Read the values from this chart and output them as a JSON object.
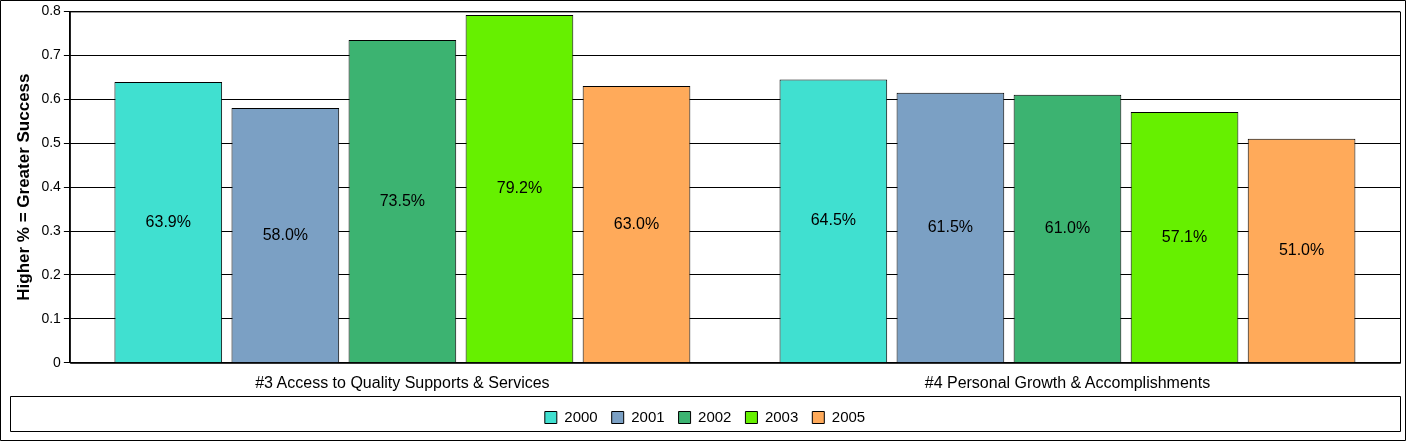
{
  "chart_data": {
    "type": "bar",
    "ylabel": "Higher % = Greater Success",
    "categories": [
      "#3 Access to Quality Supports & Services",
      "#4 Personal Growth & Accomplishments"
    ],
    "series": [
      {
        "name": "2000",
        "color": "#40e0d0",
        "values": [
          0.639,
          0.645
        ],
        "value_labels": [
          "63.9%",
          "64.5%"
        ]
      },
      {
        "name": "2001",
        "color": "#7ba0c4",
        "values": [
          0.58,
          0.615
        ],
        "value_labels": [
          "58.0%",
          "61.5%"
        ]
      },
      {
        "name": "2002",
        "color": "#3cb371",
        "values": [
          0.735,
          0.61
        ],
        "value_labels": [
          "73.5%",
          "61.0%"
        ]
      },
      {
        "name": "2003",
        "color": "#66f000",
        "values": [
          0.792,
          0.571
        ],
        "value_labels": [
          "79.2%",
          "57.1%"
        ]
      },
      {
        "name": "2005",
        "color": "#ffaa5a",
        "values": [
          0.63,
          0.51
        ],
        "value_labels": [
          "63.0%",
          "51.0%"
        ]
      }
    ],
    "ylim": [
      0,
      0.8
    ],
    "yticks": [
      0,
      0.1,
      0.2,
      0.3,
      0.4,
      0.5,
      0.6,
      0.7,
      0.8
    ],
    "grid": "y",
    "legend": "bottom"
  }
}
